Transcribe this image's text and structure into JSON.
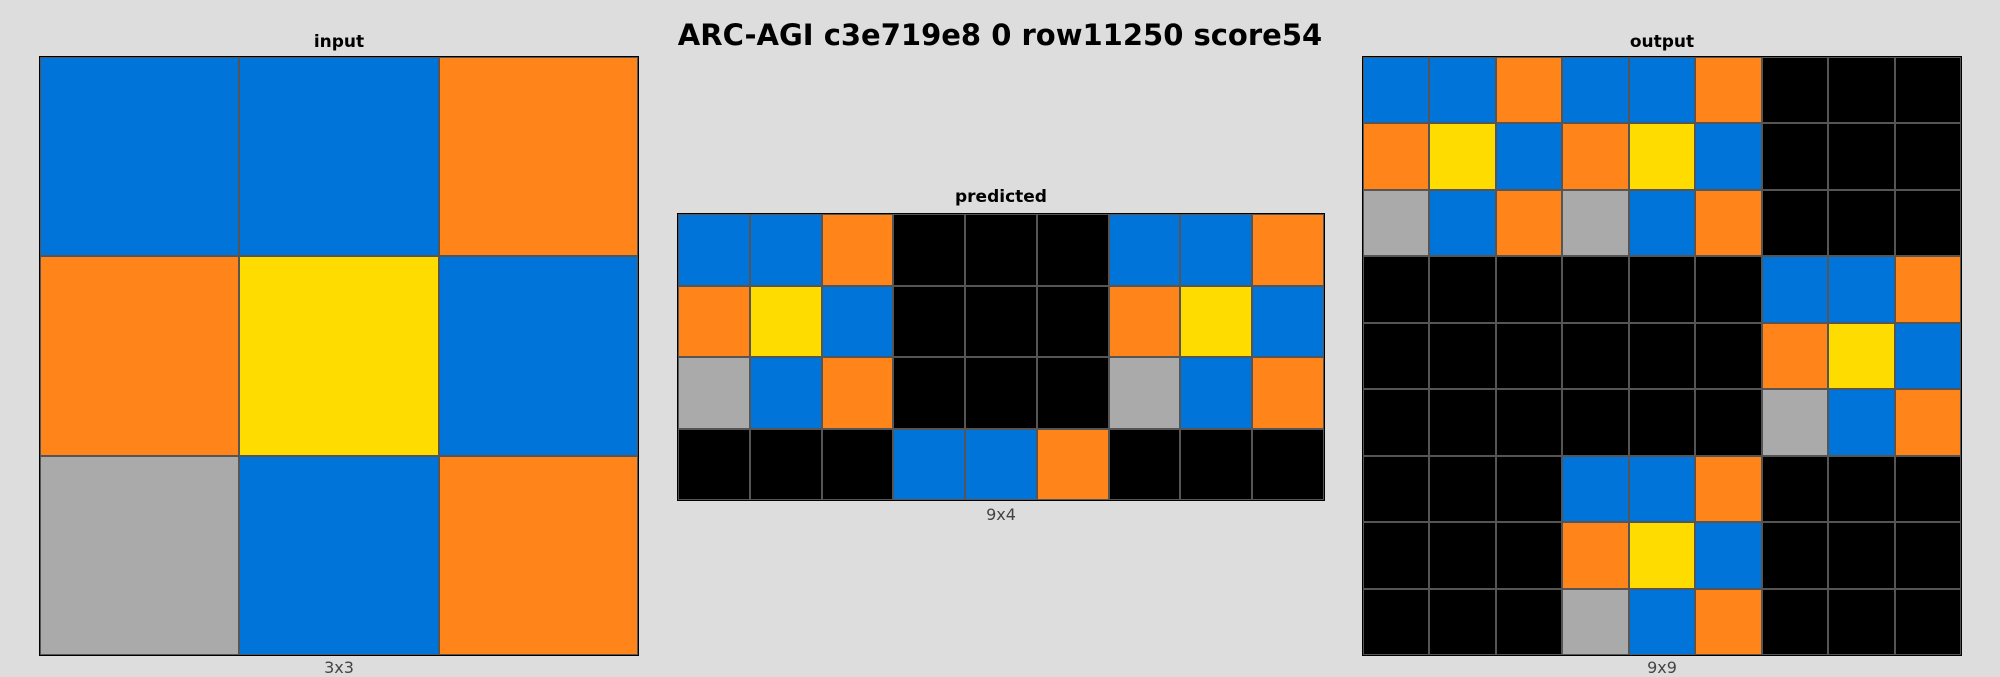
{
  "title": "ARC-AGI c3e719e8 0 row11250 score54",
  "palette": {
    "0": "#000000",
    "1": "#0074D9",
    "2": "#FF4136",
    "3": "#2ECC40",
    "4": "#FFDC00",
    "5": "#AAAAAA",
    "6": "#F012BE",
    "7": "#FF851B",
    "8": "#7FDBFF",
    "9": "#870C25"
  },
  "panels": {
    "input": {
      "title": "input",
      "caption": "3x3",
      "grid": [
        [
          1,
          1,
          7
        ],
        [
          7,
          4,
          1
        ],
        [
          5,
          1,
          7
        ]
      ]
    },
    "predicted": {
      "title": "predicted",
      "caption": "9x4",
      "grid": [
        [
          1,
          1,
          7,
          0,
          0,
          0,
          1,
          1,
          7
        ],
        [
          7,
          4,
          1,
          0,
          0,
          0,
          7,
          4,
          1
        ],
        [
          5,
          1,
          7,
          0,
          0,
          0,
          5,
          1,
          7
        ],
        [
          0,
          0,
          0,
          1,
          1,
          7,
          0,
          0,
          0
        ]
      ]
    },
    "output": {
      "title": "output",
      "caption": "9x9",
      "grid": [
        [
          1,
          1,
          7,
          1,
          1,
          7,
          0,
          0,
          0
        ],
        [
          7,
          4,
          1,
          7,
          4,
          1,
          0,
          0,
          0
        ],
        [
          5,
          1,
          7,
          5,
          1,
          7,
          0,
          0,
          0
        ],
        [
          0,
          0,
          0,
          0,
          0,
          0,
          1,
          1,
          7
        ],
        [
          0,
          0,
          0,
          0,
          0,
          0,
          7,
          4,
          1
        ],
        [
          0,
          0,
          0,
          0,
          0,
          0,
          5,
          1,
          7
        ],
        [
          0,
          0,
          0,
          1,
          1,
          7,
          0,
          0,
          0
        ],
        [
          0,
          0,
          0,
          7,
          4,
          1,
          0,
          0,
          0
        ],
        [
          0,
          0,
          0,
          5,
          1,
          7,
          0,
          0,
          0
        ]
      ]
    }
  }
}
